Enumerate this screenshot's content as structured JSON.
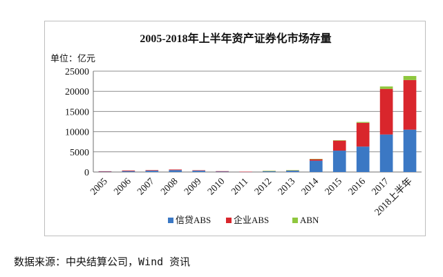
{
  "chart_data": {
    "type": "bar",
    "stacked": true,
    "title": "2005-2018年上半年资产证券化市场存量",
    "unit_label": "单位：亿元",
    "categories": [
      "2005",
      "2006",
      "2007",
      "2008",
      "2009",
      "2010",
      "2011",
      "2012",
      "2013",
      "2014",
      "2015",
      "2016",
      "2017",
      "2018上半年"
    ],
    "series": [
      {
        "name": "信贷ABS",
        "color": "#3b78c4",
        "values": [
          120,
          230,
          330,
          470,
          330,
          170,
          70,
          230,
          330,
          2800,
          5300,
          6300,
          9300,
          10500
        ]
      },
      {
        "name": "企业ABS",
        "color": "#d9262c",
        "values": [
          70,
          150,
          130,
          150,
          100,
          40,
          10,
          40,
          110,
          420,
          2500,
          5900,
          11300,
          12300
        ]
      },
      {
        "name": "ABN",
        "color": "#8fc73e",
        "values": [
          0,
          0,
          0,
          0,
          0,
          0,
          0,
          10,
          10,
          20,
          60,
          200,
          600,
          1000
        ]
      }
    ],
    "ylim": [
      0,
      25000
    ],
    "yticks": [
      "0",
      "5000",
      "10000",
      "15000",
      "20000",
      "25000"
    ],
    "grid": true,
    "legend_position": "bottom"
  },
  "source_note": "数据来源：中央结算公司，Wind 资讯"
}
